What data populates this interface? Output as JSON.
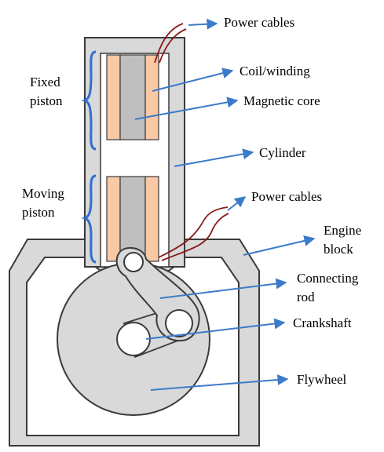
{
  "colors": {
    "gray_fill": "#d9d9d9",
    "outline": "#3a3a3a",
    "coil": "#f8c9a4",
    "core": "#bfbfbf",
    "arrow": "#3c7bc9",
    "brace": "#2f6fd1",
    "cable": "#8b1a1a"
  },
  "labels": {
    "power_cables_top": "Power cables",
    "coil_winding": "Coil/winding",
    "magnetic_core": "Magnetic core",
    "cylinder": "Cylinder",
    "power_cables_mid": "Power cables",
    "engine_block_1": "Engine",
    "engine_block_2": "block",
    "connecting_rod_1": "Connecting",
    "connecting_rod_2": "rod",
    "crankshaft": "Crankshaft",
    "flywheel": "Flywheel",
    "fixed_piston_1": "Fixed",
    "fixed_piston_2": "piston",
    "moving_piston_1": "Moving",
    "moving_piston_2": "piston"
  },
  "icons": [
    "brace-icon",
    "arrow-icon",
    "cable-icon"
  ]
}
